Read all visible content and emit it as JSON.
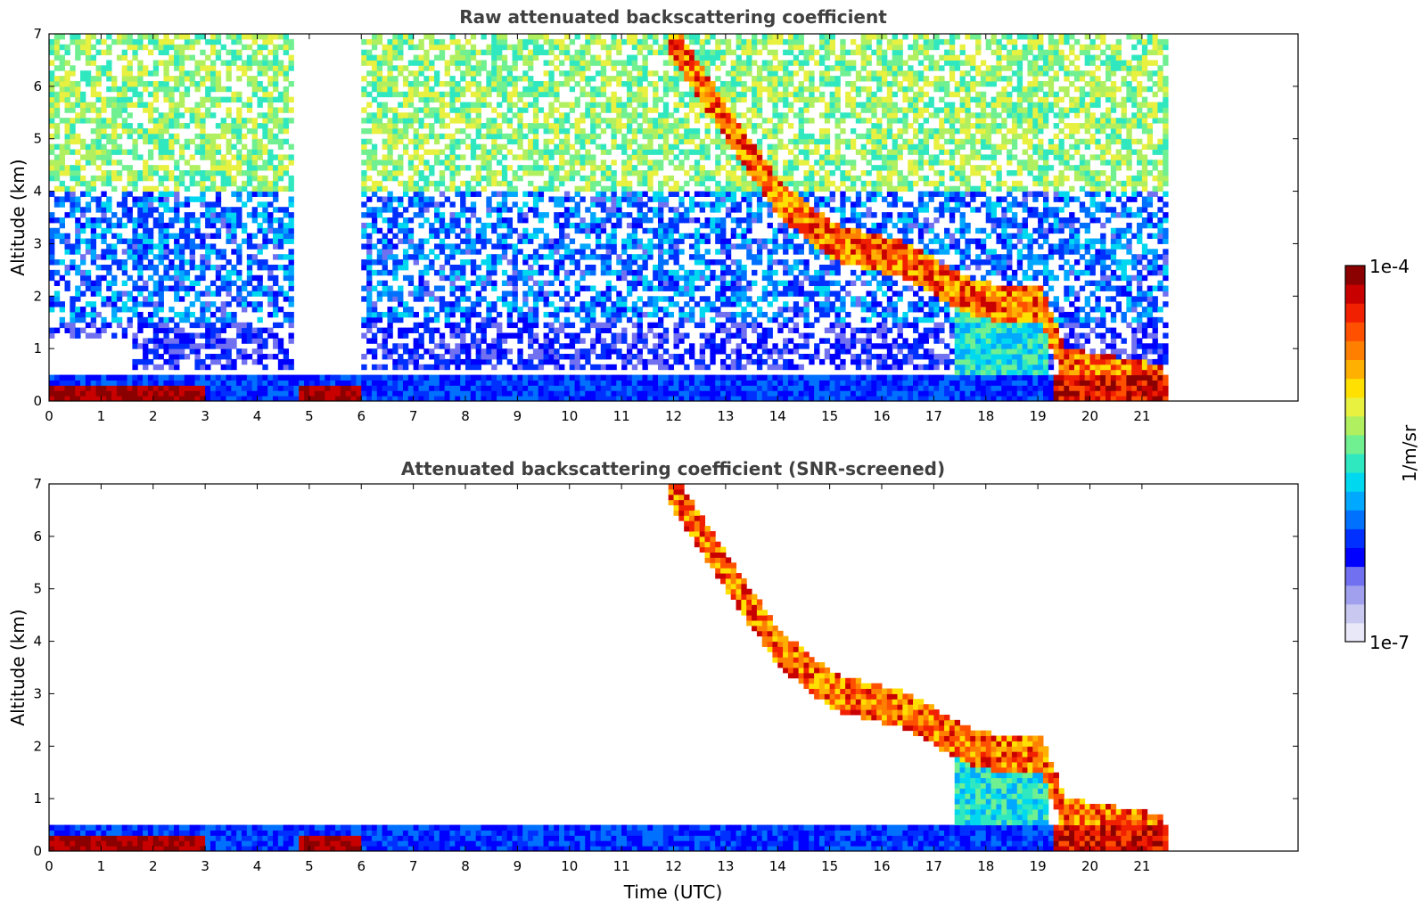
{
  "chart_data": [
    {
      "type": "heatmap",
      "title": "Raw attenuated backscattering coefficient",
      "xlabel": "",
      "ylabel": "Altitude (km)",
      "xlim": [
        0,
        24
      ],
      "ylim": [
        0,
        7
      ],
      "xticks": [
        "0",
        "1",
        "2",
        "3",
        "4",
        "5",
        "6",
        "7",
        "8",
        "9",
        "10",
        "11",
        "12",
        "13",
        "14",
        "15",
        "16",
        "17",
        "18",
        "19",
        "20",
        "21"
      ],
      "yticks": [
        "0",
        "1",
        "2",
        "3",
        "4",
        "5",
        "6",
        "7"
      ],
      "data_end_time": 21.45,
      "features": [
        {
          "name": "surface layer",
          "time_range": [
            0,
            21.45
          ],
          "altitude_km": [
            0,
            0.5
          ],
          "level": "low"
        },
        {
          "name": "near-surface aerosol",
          "time_range": [
            0,
            3
          ],
          "altitude_km": [
            0.1,
            0.3
          ],
          "level": "high"
        },
        {
          "name": "near-surface aerosol",
          "time_range": [
            4.7,
            5.9
          ],
          "altitude_km": [
            0.05,
            0.15
          ],
          "level": "high"
        },
        {
          "name": "descending cloud layer",
          "points": [
            [
              11.8,
              7.0
            ],
            [
              12.5,
              6.0
            ],
            [
              13.0,
              5.2
            ],
            [
              14.0,
              3.8
            ],
            [
              15.0,
              3.0
            ],
            [
              16.5,
              2.6
            ],
            [
              17.5,
              2.0
            ],
            [
              18.2,
              1.8
            ],
            [
              19.0,
              1.8
            ],
            [
              19.5,
              0.6
            ],
            [
              21.4,
              0.3
            ]
          ],
          "level": "high"
        }
      ]
    },
    {
      "type": "heatmap",
      "title": "Attenuated backscattering coefficient (SNR-screened)",
      "xlabel": "Time (UTC)",
      "ylabel": "Altitude (km)",
      "xlim": [
        0,
        24
      ],
      "ylim": [
        0,
        7
      ],
      "xticks": [
        "0",
        "1",
        "2",
        "3",
        "4",
        "5",
        "6",
        "7",
        "8",
        "9",
        "10",
        "11",
        "12",
        "13",
        "14",
        "15",
        "16",
        "17",
        "18",
        "19",
        "20",
        "21"
      ],
      "yticks": [
        "0",
        "1",
        "2",
        "3",
        "4",
        "5",
        "6",
        "7"
      ],
      "data_end_time": 21.45
    }
  ],
  "colorbar": {
    "max_label": "1e-4",
    "min_label": "1e-7",
    "unit_label": "1/m/sr",
    "colors": [
      "#e8e8f8",
      "#c8c8f0",
      "#a0a0ee",
      "#7070f0",
      "#0000ff",
      "#0030ff",
      "#0070ff",
      "#00a8ff",
      "#00d8f0",
      "#30e8c0",
      "#70f090",
      "#b0f060",
      "#e8f040",
      "#ffe000",
      "#ffb000",
      "#ff8000",
      "#ff5000",
      "#f02000",
      "#c80000",
      "#8b0000"
    ]
  }
}
